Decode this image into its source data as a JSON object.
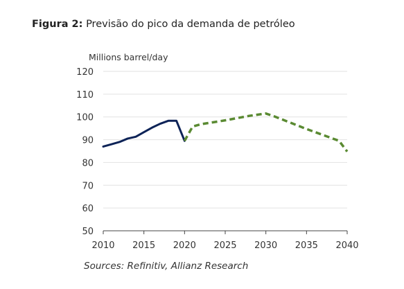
{
  "figure": {
    "label": "Figura 2:",
    "title": "Previsão do pico da demanda de petróleo"
  },
  "source": "Sources: Refinitiv, Allianz Research",
  "colors": {
    "historical": "#0d2357",
    "forecast": "#5a8a32",
    "grid": "#e2e2e2",
    "axis": "#444444",
    "text": "#333333"
  },
  "chart_data": {
    "type": "line",
    "ylabel": "Millions barrel/day",
    "xlabel": "",
    "xlim": [
      2010,
      2040
    ],
    "ylim": [
      50,
      120
    ],
    "x_ticks": [
      2010,
      2015,
      2020,
      2025,
      2030,
      2035,
      2040
    ],
    "y_ticks": [
      50,
      60,
      70,
      80,
      90,
      100,
      110,
      120
    ],
    "grid": true,
    "legend": "none",
    "series": [
      {
        "style": "solid",
        "color": "#0d2357",
        "x": [
          2010,
          2011,
          2012,
          2013,
          2014,
          2015,
          2016,
          2017,
          2018,
          2019,
          2020
        ],
        "y": [
          87,
          88,
          89,
          90.5,
          91.3,
          93.3,
          95.3,
          97,
          98.3,
          98.3,
          89.5
        ]
      },
      {
        "style": "dashed",
        "color": "#5a8a32",
        "x": [
          2020,
          2021,
          2022,
          2025,
          2028,
          2030,
          2031,
          2035,
          2039,
          2040
        ],
        "y": [
          89.5,
          95.8,
          96.8,
          98.5,
          100.5,
          101.5,
          100.3,
          94.7,
          89.5,
          84.8
        ]
      }
    ]
  }
}
